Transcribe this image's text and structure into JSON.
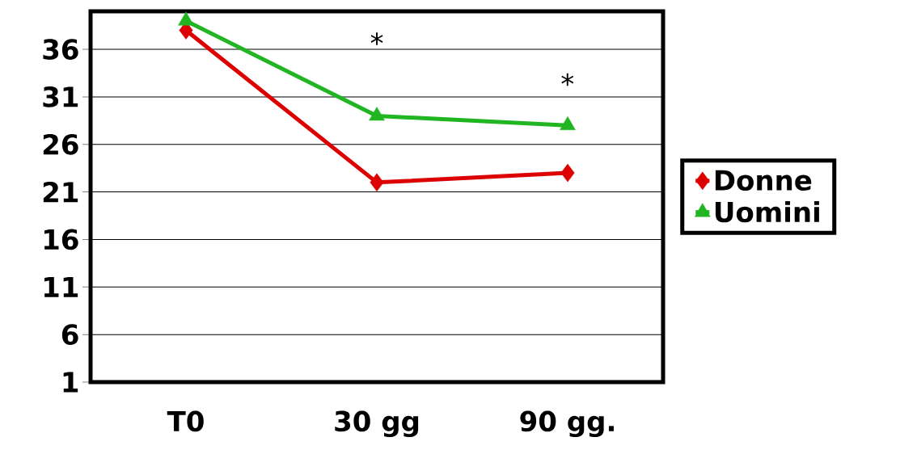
{
  "chart_data": {
    "type": "line",
    "categories": [
      "T0",
      "30 gg",
      "90 gg."
    ],
    "series": [
      {
        "name": "Donne",
        "color": "#dd0000",
        "values": [
          38,
          22,
          23
        ],
        "marker": "diamond"
      },
      {
        "name": "Uomini",
        "color": "#22b522",
        "values": [
          39,
          29,
          28
        ],
        "marker": "triangle"
      }
    ],
    "ylim": [
      1,
      40
    ],
    "yticks": [
      1,
      6,
      11,
      16,
      21,
      26,
      31,
      36
    ],
    "grid": "y",
    "legend": "right",
    "line_style": "solid",
    "annotations": [
      "*",
      "*"
    ]
  }
}
